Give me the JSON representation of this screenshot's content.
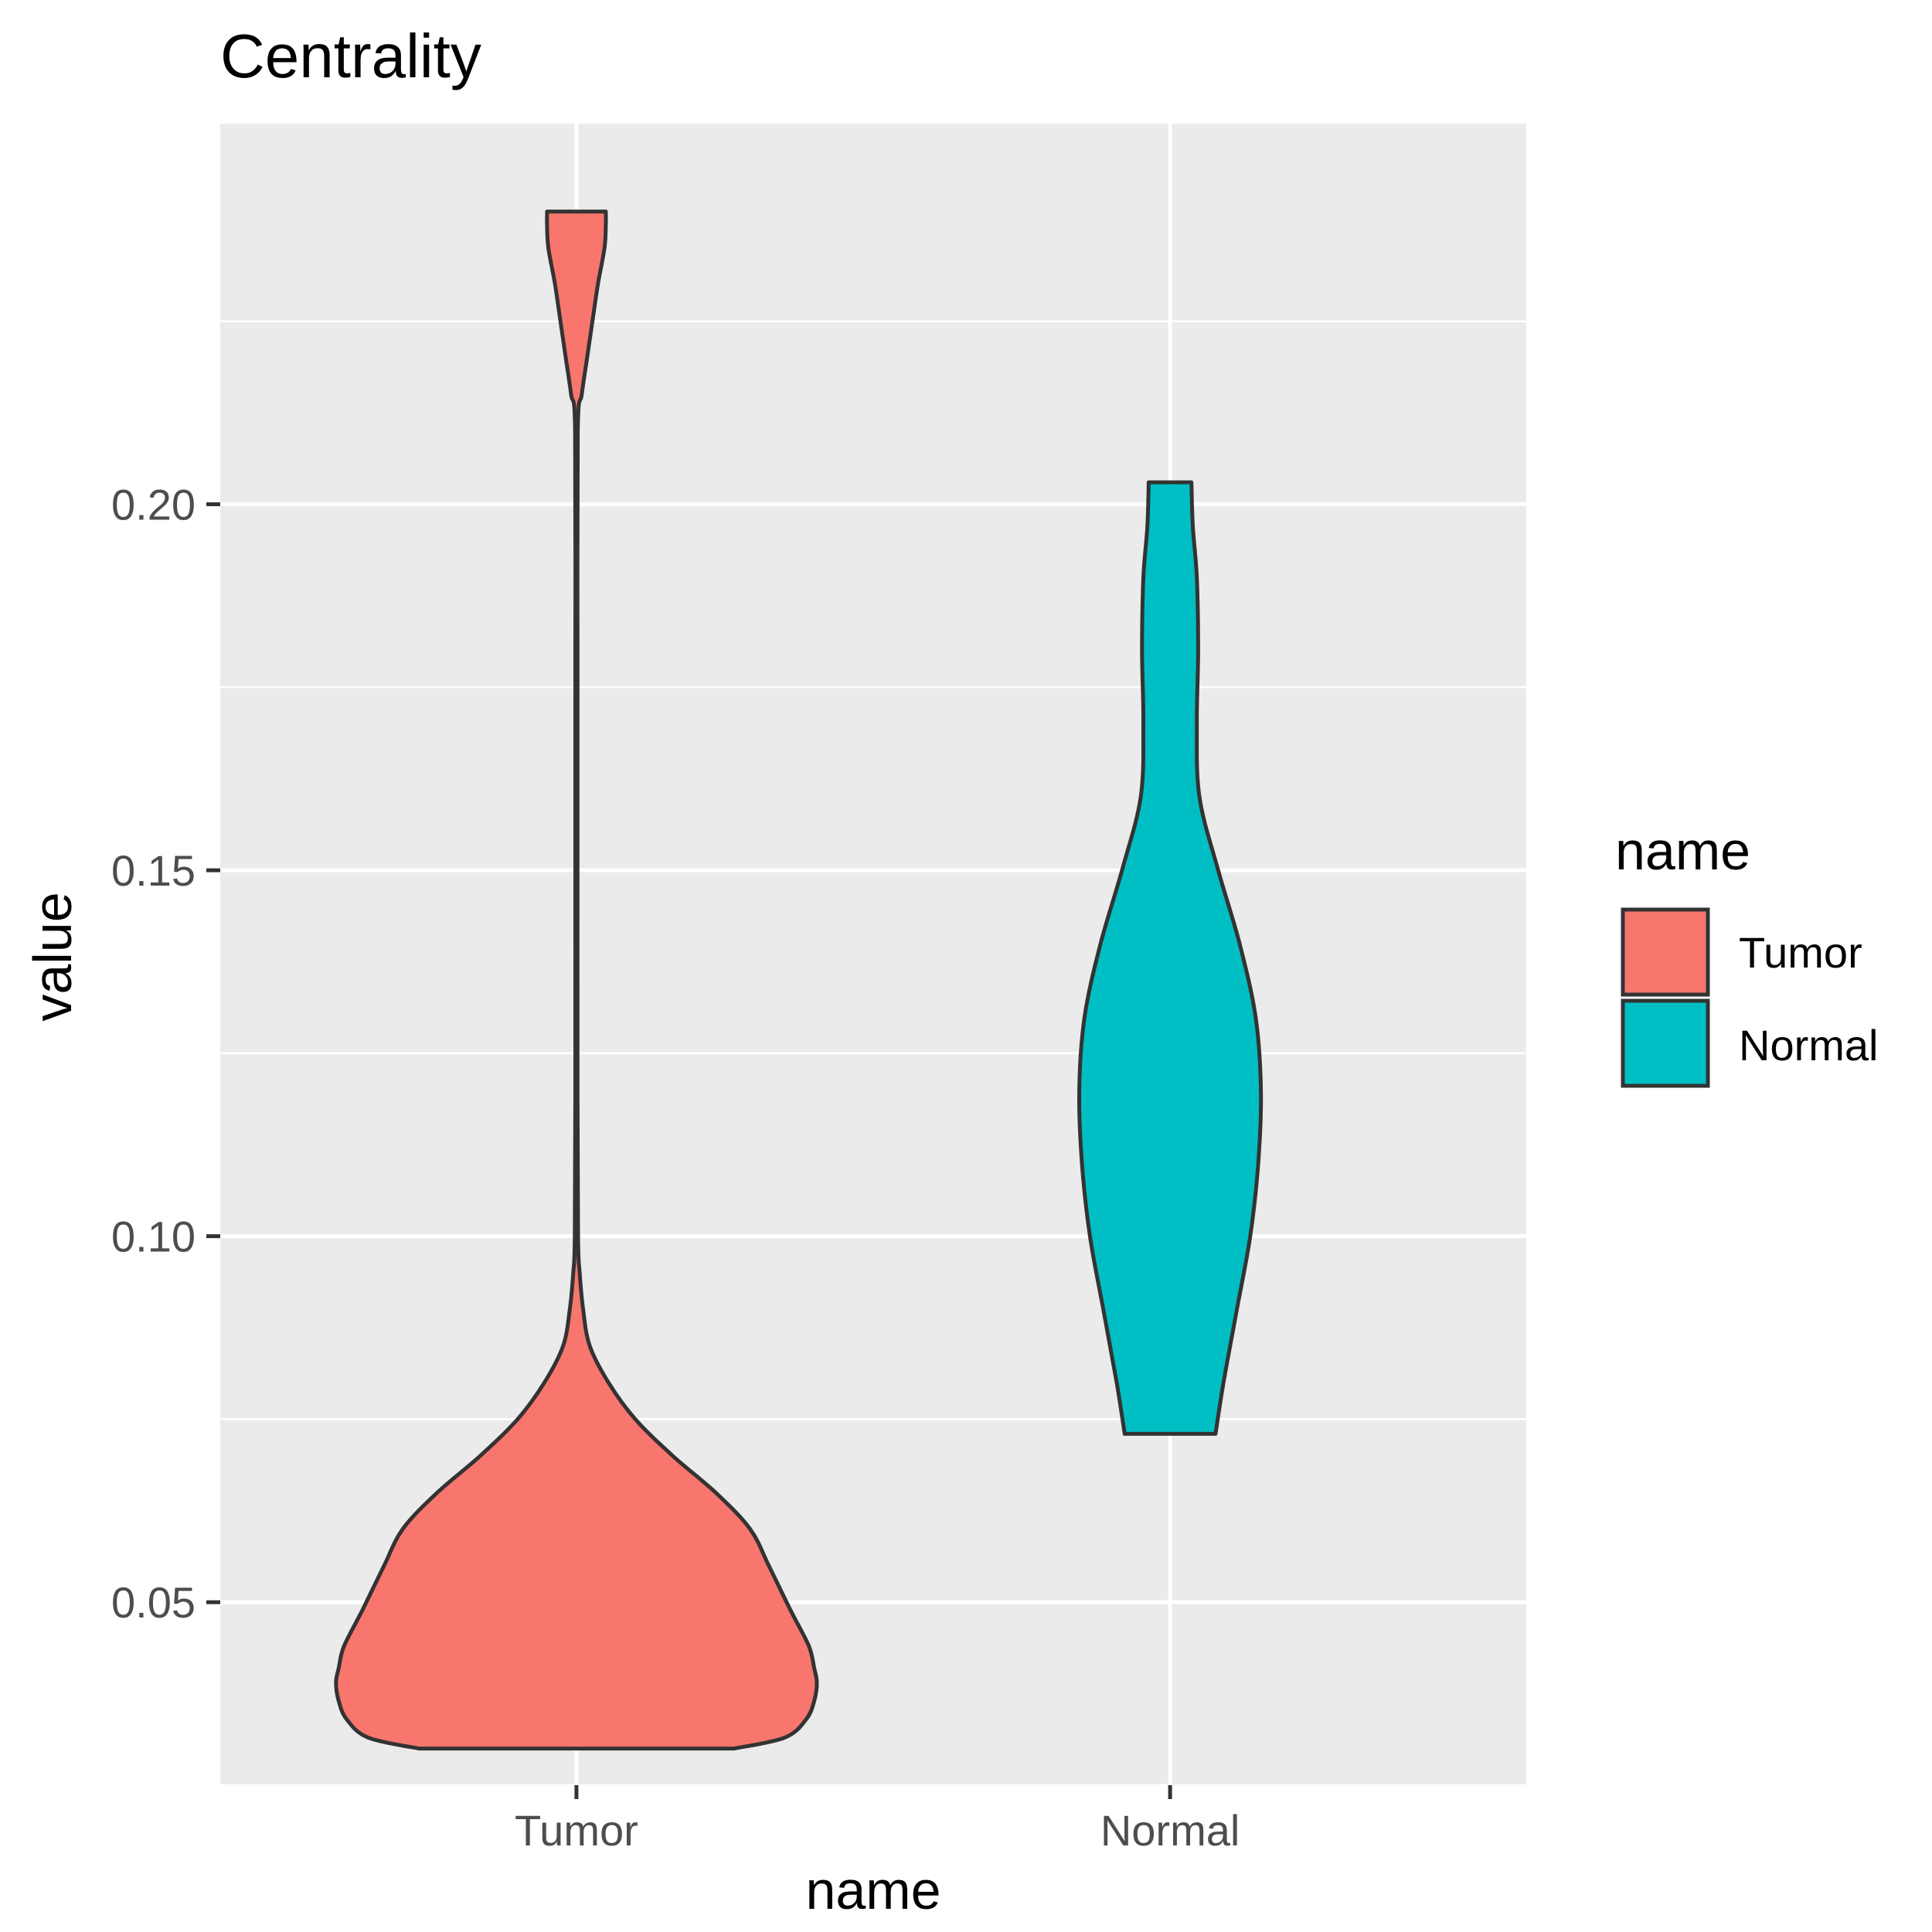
{
  "chart_data": {
    "type": "violin",
    "title": "Centrality",
    "xlabel": "name",
    "ylabel": "value",
    "ylim": [
      0.025,
      0.252
    ],
    "yticks": [
      "0.05",
      "0.10",
      "0.15",
      "0.20"
    ],
    "categories": [
      "Tumor",
      "Normal"
    ],
    "grid": true,
    "legend": {
      "title": "name",
      "position": "right",
      "entries": [
        "Tumor",
        "Normal"
      ]
    },
    "series": [
      {
        "name": "Tumor",
        "color": "#F8766D",
        "min": 0.03,
        "max": 0.24,
        "density": [
          [
            0.03,
            0.59
          ],
          [
            0.0315,
            0.78
          ],
          [
            0.034,
            0.86
          ],
          [
            0.0365,
            0.89
          ],
          [
            0.039,
            0.9
          ],
          [
            0.041,
            0.89
          ],
          [
            0.044,
            0.87
          ],
          [
            0.049,
            0.8
          ],
          [
            0.055,
            0.72
          ],
          [
            0.06,
            0.65
          ],
          [
            0.065,
            0.52
          ],
          [
            0.07,
            0.36
          ],
          [
            0.075,
            0.22
          ],
          [
            0.08,
            0.12
          ],
          [
            0.085,
            0.05
          ],
          [
            0.09,
            0.025
          ],
          [
            0.095,
            0.012
          ],
          [
            0.1,
            0.006
          ],
          [
            0.12,
            0.004
          ],
          [
            0.15,
            0.004
          ],
          [
            0.18,
            0.004
          ],
          [
            0.21,
            0.005
          ],
          [
            0.215,
            0.02
          ],
          [
            0.22,
            0.04
          ],
          [
            0.225,
            0.06
          ],
          [
            0.23,
            0.08
          ],
          [
            0.235,
            0.105
          ],
          [
            0.238,
            0.11
          ],
          [
            0.24,
            0.11
          ]
        ]
      },
      {
        "name": "Normal",
        "color": "#00BFC4",
        "min": 0.073,
        "max": 0.203,
        "density": [
          [
            0.073,
            0.17
          ],
          [
            0.08,
            0.2
          ],
          [
            0.09,
            0.25
          ],
          [
            0.1,
            0.3
          ],
          [
            0.11,
            0.33
          ],
          [
            0.12,
            0.34
          ],
          [
            0.13,
            0.32
          ],
          [
            0.14,
            0.26
          ],
          [
            0.15,
            0.18
          ],
          [
            0.16,
            0.11
          ],
          [
            0.17,
            0.1
          ],
          [
            0.18,
            0.105
          ],
          [
            0.19,
            0.1
          ],
          [
            0.197,
            0.085
          ],
          [
            0.203,
            0.08
          ]
        ]
      }
    ]
  }
}
